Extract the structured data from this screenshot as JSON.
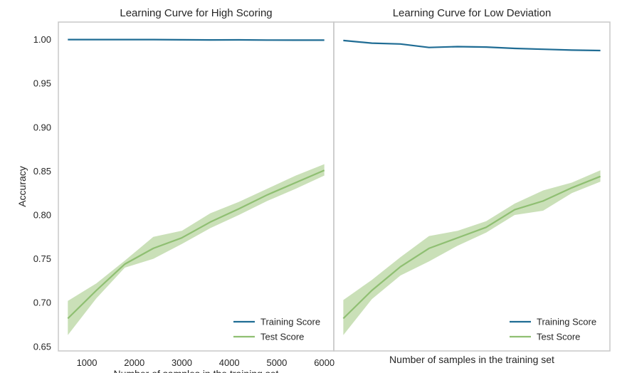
{
  "colors": {
    "train": "#1f6c94",
    "test": "#8fbf72",
    "test_band": "#b8d6a0",
    "frame": "#c8c8c8",
    "background": "#ffffff"
  },
  "chart_data": [
    {
      "type": "line",
      "title": "Learning Curve for High Scoring",
      "xlabel": "Number of samples in the training set",
      "ylabel": "Accuracy",
      "xlim": [
        400,
        6200
      ],
      "ylim": [
        0.645,
        1.02
      ],
      "x_ticks": [
        1000,
        2000,
        3000,
        4000,
        5000,
        6000
      ],
      "x_tick_labels": [
        "1000",
        "2000",
        "3000",
        "4000",
        "5000",
        "6000"
      ],
      "y_ticks": [
        0.65,
        0.7,
        0.75,
        0.8,
        0.85,
        0.9,
        0.95,
        1.0
      ],
      "y_tick_labels": [
        "0.65",
        "0.70",
        "0.75",
        "0.80",
        "0.85",
        "0.90",
        "0.95",
        "1.00"
      ],
      "grid": false,
      "legend": "lower-right",
      "x": [
        600,
        1200,
        1800,
        2400,
        3000,
        3600,
        4200,
        4800,
        5400,
        6000
      ],
      "series": [
        {
          "name": "Training Score",
          "color": "#1f6c94",
          "values": [
            1.0,
            1.0,
            1.0,
            1.0,
            0.9998,
            0.9996,
            0.9997,
            0.9995,
            0.9994,
            0.9994
          ]
        },
        {
          "name": "Test Score",
          "color": "#8fbf72",
          "values": [
            0.682,
            0.714,
            0.744,
            0.762,
            0.774,
            0.792,
            0.807,
            0.823,
            0.837,
            0.851
          ],
          "band_lower": [
            0.663,
            0.705,
            0.74,
            0.75,
            0.767,
            0.785,
            0.8,
            0.816,
            0.83,
            0.845
          ],
          "band_upper": [
            0.702,
            0.722,
            0.748,
            0.775,
            0.782,
            0.802,
            0.815,
            0.83,
            0.845,
            0.858
          ]
        }
      ]
    },
    {
      "type": "line",
      "title": "Learning Curve for Low Deviation",
      "xlabel": "Number of samples in the training set",
      "ylabel": "",
      "xlim": [
        400,
        6200
      ],
      "ylim": [
        0.645,
        1.02
      ],
      "x_ticks": [],
      "x_tick_labels": [],
      "y_ticks": [],
      "y_tick_labels": [],
      "grid": false,
      "legend": "lower-right",
      "x": [
        600,
        1200,
        1800,
        2400,
        3000,
        3600,
        4200,
        4800,
        5400,
        6000
      ],
      "series": [
        {
          "name": "Training Score",
          "color": "#1f6c94",
          "values": [
            0.999,
            0.996,
            0.995,
            0.991,
            0.992,
            0.9915,
            0.99,
            0.989,
            0.988,
            0.9875
          ]
        },
        {
          "name": "Test Score",
          "color": "#8fbf72",
          "values": [
            0.682,
            0.714,
            0.741,
            0.762,
            0.774,
            0.786,
            0.806,
            0.816,
            0.831,
            0.844
          ],
          "band_lower": [
            0.663,
            0.704,
            0.731,
            0.747,
            0.765,
            0.78,
            0.8,
            0.805,
            0.825,
            0.838
          ],
          "band_upper": [
            0.703,
            0.726,
            0.752,
            0.776,
            0.782,
            0.793,
            0.813,
            0.828,
            0.837,
            0.851
          ]
        }
      ]
    }
  ]
}
